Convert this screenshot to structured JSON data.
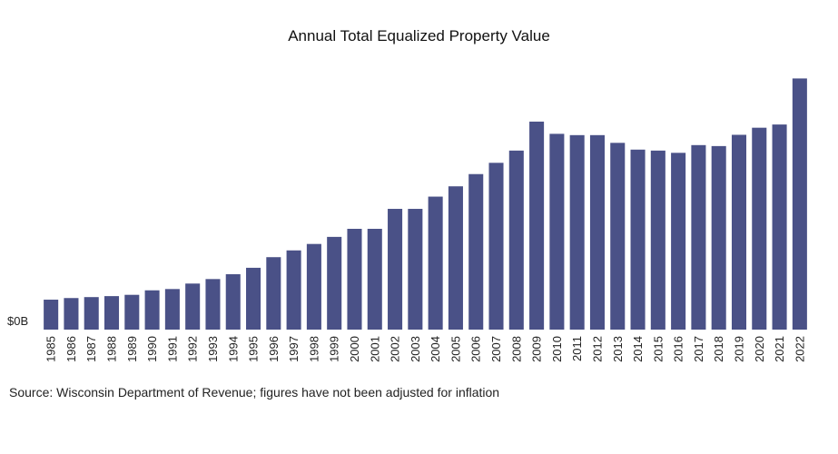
{
  "title": "Annual Total Equalized Property Value",
  "source": "Source: Wisconsin Department of Revenue; figures have not been adjusted for inflation",
  "colors": {
    "bar": "#4a5187",
    "axis_text": "#222222"
  },
  "chart_data": {
    "type": "bar",
    "title": "Annual Total Equalized Property Value",
    "xlabel": "",
    "ylabel": "",
    "y_tick_labels": [
      "$0B"
    ],
    "grid": false,
    "legend": "none",
    "ylim": [
      0,
      800
    ],
    "categories": [
      "1985",
      "1986",
      "1987",
      "1988",
      "1989",
      "1990",
      "1991",
      "1992",
      "1993",
      "1994",
      "1995",
      "1996",
      "1997",
      "1998",
      "1999",
      "2000",
      "2001",
      "2002",
      "2003",
      "2004",
      "2005",
      "2006",
      "2007",
      "2008",
      "2009",
      "2010",
      "2011",
      "2012",
      "2013",
      "2014",
      "2015",
      "2016",
      "2017",
      "2018",
      "2019",
      "2020",
      "2021",
      "2022"
    ],
    "values": [
      93,
      98,
      101,
      104,
      108,
      122,
      126,
      143,
      157,
      172,
      192,
      225,
      246,
      266,
      288,
      313,
      313,
      375,
      375,
      413,
      445,
      483,
      518,
      556,
      646,
      608,
      604,
      604,
      580,
      559,
      556,
      549,
      573,
      570,
      605,
      627,
      637,
      780
    ]
  }
}
